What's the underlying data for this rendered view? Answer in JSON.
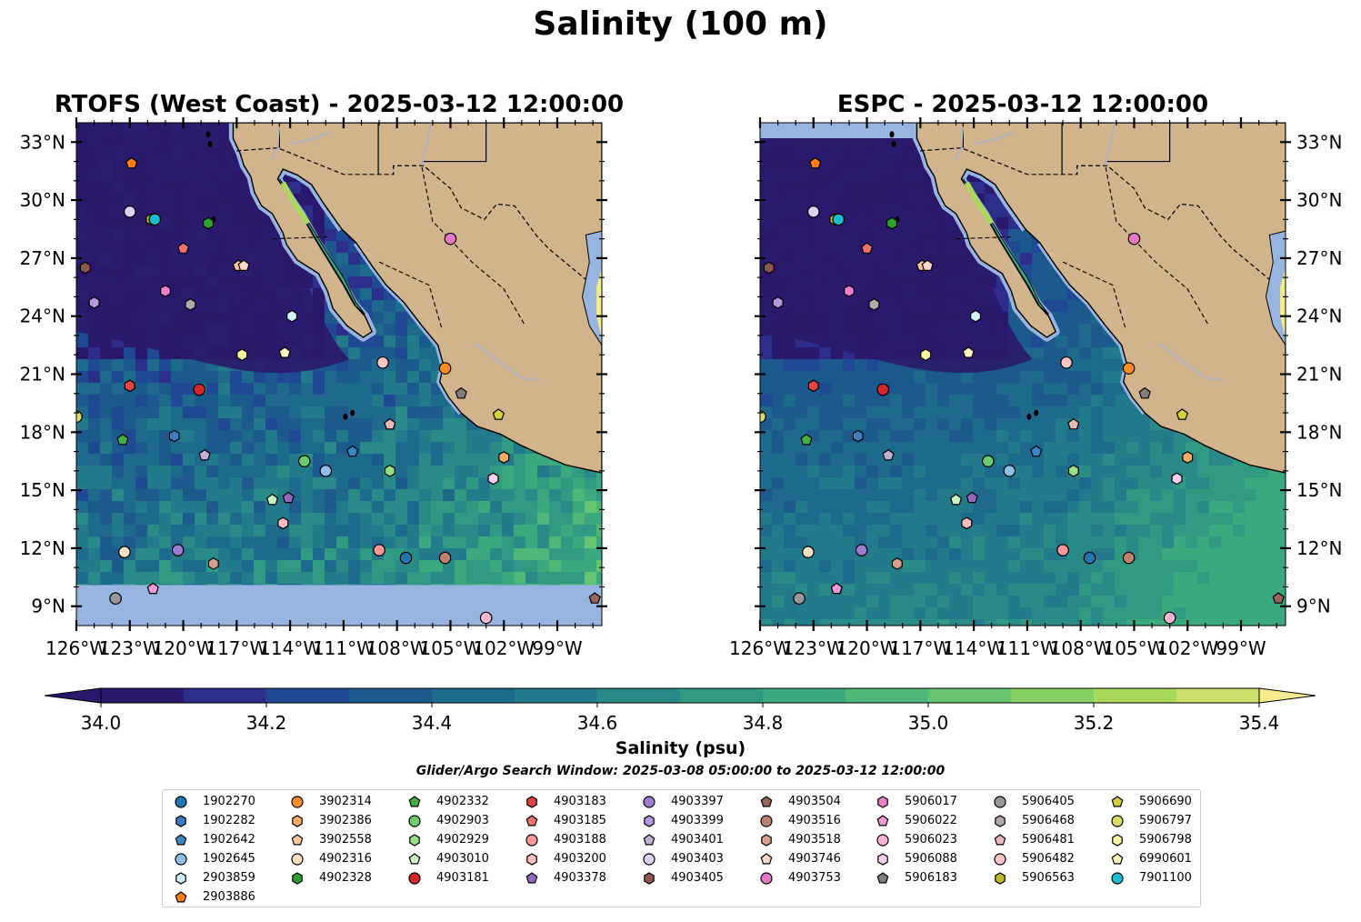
{
  "title": "Salinity (100 m)",
  "panels": [
    {
      "id": "rtofs",
      "title": "RTOFS (West Coast) - 2025-03-12 12:00:00",
      "y_label_side": "left"
    },
    {
      "id": "espc",
      "title": "ESPC - 2025-03-12 12:00:00",
      "y_label_side": "right"
    }
  ],
  "axes": {
    "lon_range": [
      -126,
      -96.5
    ],
    "lat_range": [
      8,
      34
    ],
    "lon_ticks": [
      "126°W",
      "123°W",
      "120°W",
      "117°W",
      "114°W",
      "111°W",
      "108°W",
      "105°W",
      "102°W",
      "99°W"
    ],
    "lat_ticks": [
      "33°N",
      "30°N",
      "27°N",
      "24°N",
      "21°N",
      "18°N",
      "15°N",
      "12°N",
      "9°N"
    ]
  },
  "colorbar": {
    "label": "Salinity (psu)",
    "ticks": [
      "34.0",
      "34.2",
      "34.4",
      "34.6",
      "34.8",
      "35.0",
      "35.2",
      "35.4"
    ],
    "range": [
      34.0,
      35.4
    ],
    "extend": "both",
    "colors": [
      "#2a186c",
      "#2d2d8c",
      "#1f4a93",
      "#1c5a8e",
      "#1e6a8c",
      "#237a8a",
      "#298a87",
      "#319a83",
      "#3aa97e",
      "#4fb778",
      "#66c36f",
      "#86cf64",
      "#a8d95a",
      "#cde06d"
    ],
    "under_color": "#2a186c",
    "over_color": "#f6ea8c"
  },
  "colors": {
    "land": "#d2b48c",
    "missing_ocean": "#98b4e0",
    "rivers": "#a2b4d4"
  },
  "search_window": "Glider/Argo Search Window: 2025-03-08 05:00:00 to 2025-03-12 12:00:00",
  "floats": [
    {
      "id": "1902270",
      "color": "#1f77b4",
      "marker": "circle",
      "lon": -107.5,
      "lat": 11.5
    },
    {
      "id": "1902282",
      "color": "#3b7fc0",
      "marker": "hexagon",
      "lon": -120.5,
      "lat": 17.8
    },
    {
      "id": "1902642",
      "color": "#3d85c6",
      "marker": "pentagon",
      "lon": -110.5,
      "lat": 17.0
    },
    {
      "id": "1902645",
      "color": "#8ec1e8",
      "marker": "circle",
      "lon": -112.0,
      "lat": 16.0
    },
    {
      "id": "2903859",
      "color": "#d4f1ff",
      "marker": "hexagon",
      "lon": -113.9,
      "lat": 24.0
    },
    {
      "id": "2903886",
      "color": "#ff7f0e",
      "marker": "pentagon",
      "lon": -122.9,
      "lat": 31.9
    },
    {
      "id": "3902314",
      "color": "#ff8c2a",
      "marker": "circle",
      "lon": -105.3,
      "lat": 21.3
    },
    {
      "id": "3902386",
      "color": "#ffaa66",
      "marker": "hexagon",
      "lon": -102.0,
      "lat": 16.7
    },
    {
      "id": "3902558",
      "color": "#ffc99a",
      "marker": "pentagon",
      "lon": -116.9,
      "lat": 26.6
    },
    {
      "id": "4902316",
      "color": "#ffe0c0",
      "marker": "circle",
      "lon": -123.3,
      "lat": 11.8
    },
    {
      "id": "4902328",
      "color": "#2ca02c",
      "marker": "hexagon",
      "lon": -118.6,
      "lat": 28.8
    },
    {
      "id": "4902332",
      "color": "#41b041",
      "marker": "pentagon",
      "lon": -123.4,
      "lat": 17.6
    },
    {
      "id": "4902903",
      "color": "#6ecc6e",
      "marker": "circle",
      "lon": -113.2,
      "lat": 16.5
    },
    {
      "id": "4902929",
      "color": "#98df8a",
      "marker": "hexagon",
      "lon": -108.4,
      "lat": 16.0
    },
    {
      "id": "4903010",
      "color": "#c8f5c0",
      "marker": "pentagon",
      "lon": -115.0,
      "lat": 14.5
    },
    {
      "id": "4903181",
      "color": "#d62728",
      "marker": "circle",
      "lon": -119.1,
      "lat": 20.2
    },
    {
      "id": "4903183",
      "color": "#e04545",
      "marker": "hexagon",
      "lon": -123.0,
      "lat": 20.4
    },
    {
      "id": "4903185",
      "color": "#f07070",
      "marker": "pentagon",
      "lon": -120.0,
      "lat": 27.5
    },
    {
      "id": "4903188",
      "color": "#ff9896",
      "marker": "circle",
      "lon": -109.0,
      "lat": 11.9
    },
    {
      "id": "4903200",
      "color": "#ffbcbc",
      "marker": "hexagon",
      "lon": -114.4,
      "lat": 13.3
    },
    {
      "id": "4903378",
      "color": "#9467bd",
      "marker": "pentagon",
      "lon": -114.1,
      "lat": 14.6
    },
    {
      "id": "4903397",
      "color": "#a07cd0",
      "marker": "circle",
      "lon": -120.3,
      "lat": 11.9
    },
    {
      "id": "4903399",
      "color": "#b496e0",
      "marker": "hexagon",
      "lon": -125.0,
      "lat": 24.7
    },
    {
      "id": "4903401",
      "color": "#c5b0d5",
      "marker": "pentagon",
      "lon": -118.8,
      "lat": 16.8
    },
    {
      "id": "4903403",
      "color": "#e0d0f5",
      "marker": "circle",
      "lon": -123.0,
      "lat": 29.4
    },
    {
      "id": "4903405",
      "color": "#8c564b",
      "marker": "hexagon",
      "lon": -125.5,
      "lat": 26.5
    },
    {
      "id": "4903504",
      "color": "#9b6458",
      "marker": "pentagon",
      "lon": -96.9,
      "lat": 9.4
    },
    {
      "id": "4903516",
      "color": "#c08070",
      "marker": "circle",
      "lon": -105.3,
      "lat": 11.5
    },
    {
      "id": "4903518",
      "color": "#d9a090",
      "marker": "hexagon",
      "lon": -118.3,
      "lat": 11.2
    },
    {
      "id": "4903746",
      "color": "#ffd8cc",
      "marker": "pentagon",
      "lon": -116.6,
      "lat": 26.6
    },
    {
      "id": "4903753",
      "color": "#e377c2",
      "marker": "circle",
      "lon": -105.0,
      "lat": 28.0
    },
    {
      "id": "5906017",
      "color": "#e780c8",
      "marker": "hexagon",
      "lon": -121.0,
      "lat": 25.3
    },
    {
      "id": "5906022",
      "color": "#f29ad8",
      "marker": "pentagon",
      "lon": -121.7,
      "lat": 9.9
    },
    {
      "id": "5906023",
      "color": "#f7b6d2",
      "marker": "circle",
      "lon": -103.0,
      "lat": 8.4
    },
    {
      "id": "5906088",
      "color": "#fcd0ec",
      "marker": "hexagon",
      "lon": -102.6,
      "lat": 15.6
    },
    {
      "id": "5906183",
      "color": "#7f7f7f",
      "marker": "pentagon",
      "lon": -104.4,
      "lat": 20.0
    },
    {
      "id": "5906405",
      "color": "#999999",
      "marker": "circle",
      "lon": -123.8,
      "lat": 9.4
    },
    {
      "id": "5906468",
      "color": "#b2a8a8",
      "marker": "hexagon",
      "lon": -119.6,
      "lat": 24.6
    },
    {
      "id": "5906481",
      "color": "#e6b8b8",
      "marker": "pentagon",
      "lon": -108.4,
      "lat": 18.4
    },
    {
      "id": "5906482",
      "color": "#ffc4c4",
      "marker": "circle",
      "lon": -108.8,
      "lat": 21.6
    },
    {
      "id": "5906563",
      "color": "#bcbd22",
      "marker": "hexagon",
      "lon": -121.8,
      "lat": 29.0
    },
    {
      "id": "5906690",
      "color": "#d4d23a",
      "marker": "pentagon",
      "lon": -102.3,
      "lat": 18.9
    },
    {
      "id": "5906797",
      "color": "#dbdb6a",
      "marker": "circle",
      "lon": -126.0,
      "lat": 18.8
    },
    {
      "id": "5906798",
      "color": "#fdfca0",
      "marker": "hexagon",
      "lon": -116.7,
      "lat": 22.0
    },
    {
      "id": "6990601",
      "color": "#fff6bf",
      "marker": "pentagon",
      "lon": -114.3,
      "lat": 22.1
    },
    {
      "id": "7901100",
      "color": "#17becf",
      "marker": "circle",
      "lon": -121.6,
      "lat": 29.0
    }
  ]
}
